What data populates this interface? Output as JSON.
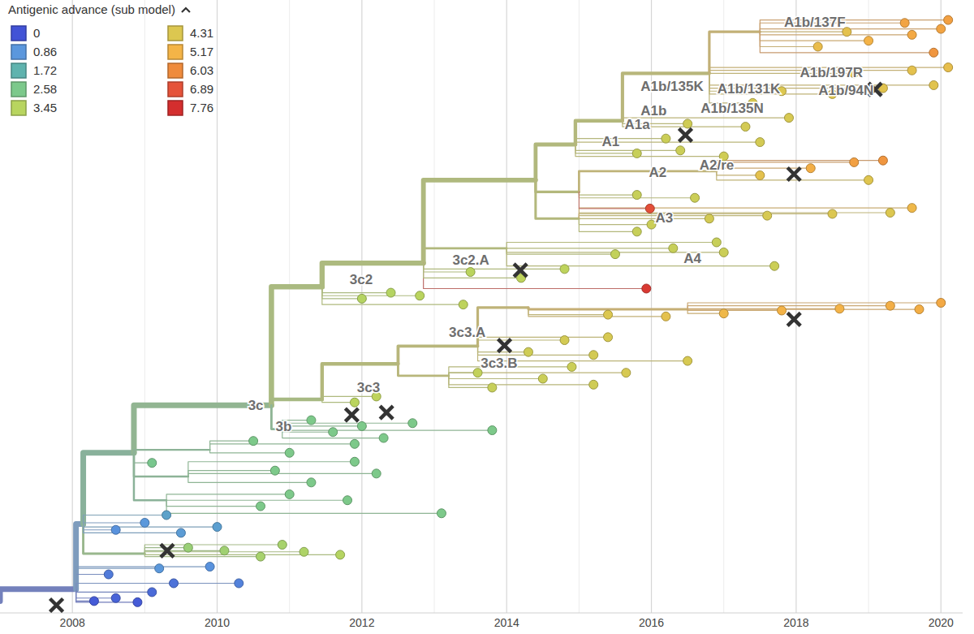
{
  "chart_data": {
    "type": "tree",
    "xlim": [
      2007.0,
      2020.3
    ],
    "ylim": [
      -1,
      101
    ],
    "xticks": [
      2008,
      2010,
      2012,
      2014,
      2016,
      2018,
      2020
    ],
    "grid": true,
    "legend": "top-left",
    "tick_labels": "x",
    "color_scale": {
      "title": "Antigenic advance (sub model)",
      "values": [
        0,
        0.86,
        1.72,
        2.58,
        3.45,
        4.31,
        5.17,
        6.03,
        6.89,
        7.76
      ],
      "colors": [
        "#4253d6",
        "#5b97dd",
        "#5fb3ae",
        "#7cc98b",
        "#b8d55f",
        "#dcc750",
        "#f4b447",
        "#ef8b3c",
        "#e5533a",
        "#d42e2e"
      ]
    },
    "nodes": [
      {
        "x": 2007.0,
        "y": 1.0,
        "parent": null,
        "value": 0
      },
      {
        "x": 2008.05,
        "y": 3.0,
        "parent": 0,
        "value": 0.2
      },
      {
        "x": 2008.15,
        "y": 14.0,
        "parent": 1,
        "value": 0.9
      },
      {
        "x": 2008.85,
        "y": 26.0,
        "parent": 2,
        "value": 2.3
      },
      {
        "x": 2010.75,
        "y": 34.0,
        "parent": 3,
        "value": 2.7
      },
      {
        "x": 2010.9,
        "y": 30.0,
        "parent": 4,
        "value": 2.6
      },
      {
        "x": 2011.45,
        "y": 35.0,
        "parent": 4,
        "value": 3.3
      },
      {
        "x": 2011.45,
        "y": 54.0,
        "parent": 4,
        "value": 3.4
      },
      {
        "x": 2012.85,
        "y": 58.0,
        "parent": 7,
        "value": 3.5
      },
      {
        "x": 2014.4,
        "y": 72.0,
        "parent": 8,
        "value": 3.6
      },
      {
        "x": 2014.95,
        "y": 78.0,
        "parent": 9,
        "value": 3.7
      },
      {
        "x": 2015.6,
        "y": 82.0,
        "parent": 10,
        "value": 3.8
      },
      {
        "x": 2016.8,
        "y": 90.0,
        "parent": 11,
        "value": 4.0
      },
      {
        "x": 2017.5,
        "y": 97.0,
        "parent": 12,
        "value": 4.6
      },
      {
        "x": 2008.3,
        "y": 1.0,
        "parent": 1,
        "value": 0.1
      },
      {
        "x": 2008.6,
        "y": 1.5,
        "parent": 1,
        "value": 0.2
      },
      {
        "x": 2008.9,
        "y": 0.8,
        "parent": 1,
        "value": 0.1
      },
      {
        "x": 2009.1,
        "y": 2.5,
        "parent": 1,
        "value": 0.3
      },
      {
        "x": 2009.4,
        "y": 4.0,
        "parent": 1,
        "value": 0.4
      },
      {
        "x": 2008.5,
        "y": 5.5,
        "parent": 1,
        "value": 0.5
      },
      {
        "x": 2009.9,
        "y": 6.8,
        "parent": 1,
        "value": 0.8
      },
      {
        "x": 2009.2,
        "y": 6.5,
        "parent": 1,
        "value": 0.9
      },
      {
        "x": 2009.0,
        "y": 9.0,
        "parent": 2,
        "value": 2.9
      },
      {
        "x": 2009.6,
        "y": 10.0,
        "parent": 22,
        "value": 3.0
      },
      {
        "x": 2010.1,
        "y": 9.5,
        "parent": 22,
        "value": 3.1
      },
      {
        "x": 2010.6,
        "y": 8.5,
        "parent": 22,
        "value": 3.2
      },
      {
        "x": 2011.2,
        "y": 9.3,
        "parent": 22,
        "value": 3.3
      },
      {
        "x": 2011.7,
        "y": 8.8,
        "parent": 22,
        "value": 3.4
      },
      {
        "x": 2010.9,
        "y": 10.5,
        "parent": 22,
        "value": 3.2
      },
      {
        "x": 2008.6,
        "y": 13.0,
        "parent": 2,
        "value": 0.8
      },
      {
        "x": 2009.0,
        "y": 14.2,
        "parent": 2,
        "value": 0.9
      },
      {
        "x": 2009.5,
        "y": 12.5,
        "parent": 2,
        "value": 1.0
      },
      {
        "x": 2010.0,
        "y": 13.5,
        "parent": 2,
        "value": 1.1
      },
      {
        "x": 2009.3,
        "y": 15.5,
        "parent": 2,
        "value": 1.2
      },
      {
        "x": 2010.3,
        "y": 4.0,
        "parent": 1,
        "value": 0.6
      },
      {
        "x": 2009.3,
        "y": 18.0,
        "parent": 3,
        "value": 2.4
      },
      {
        "x": 2010.6,
        "y": 17.0,
        "parent": 35,
        "value": 2.6
      },
      {
        "x": 2011.8,
        "y": 18.0,
        "parent": 35,
        "value": 2.6
      },
      {
        "x": 2013.1,
        "y": 15.8,
        "parent": 35,
        "value": 2.6
      },
      {
        "x": 2011.0,
        "y": 19.0,
        "parent": 35,
        "value": 2.6
      },
      {
        "x": 2009.6,
        "y": 22.0,
        "parent": 3,
        "value": 2.5
      },
      {
        "x": 2011.3,
        "y": 21.0,
        "parent": 40,
        "value": 2.6
      },
      {
        "x": 2012.2,
        "y": 22.5,
        "parent": 40,
        "value": 2.6
      },
      {
        "x": 2010.8,
        "y": 23.0,
        "parent": 40,
        "value": 2.6
      },
      {
        "x": 2011.9,
        "y": 24.5,
        "parent": 40,
        "value": 2.6
      },
      {
        "x": 2009.9,
        "y": 26.5,
        "parent": 3,
        "value": 2.5
      },
      {
        "x": 2011.0,
        "y": 26.0,
        "parent": 45,
        "value": 2.6
      },
      {
        "x": 2011.9,
        "y": 27.5,
        "parent": 45,
        "value": 2.6
      },
      {
        "x": 2010.5,
        "y": 28.0,
        "parent": 45,
        "value": 2.6
      },
      {
        "x": 2009.1,
        "y": 24.3,
        "parent": 3,
        "value": 2.5
      },
      {
        "x": 2011.3,
        "y": 31.5,
        "parent": 5,
        "value": 2.6
      },
      {
        "x": 2012.0,
        "y": 30.5,
        "parent": 5,
        "value": 2.6
      },
      {
        "x": 2012.7,
        "y": 31.0,
        "parent": 5,
        "value": 2.6
      },
      {
        "x": 2013.8,
        "y": 29.8,
        "parent": 5,
        "value": 2.6
      },
      {
        "x": 2012.3,
        "y": 28.5,
        "parent": 5,
        "value": 2.6
      },
      {
        "x": 2011.6,
        "y": 29.5,
        "parent": 5,
        "value": 2.6
      },
      {
        "x": 2011.9,
        "y": 34.5,
        "parent": 6,
        "value": 3.5
      },
      {
        "x": 2012.2,
        "y": 35.5,
        "parent": 6,
        "value": 3.6
      },
      {
        "x": 2012.5,
        "y": 41.0,
        "parent": 6,
        "value": 3.8
      },
      {
        "x": 2013.2,
        "y": 39.0,
        "parent": 58,
        "value": 4.0
      },
      {
        "x": 2013.8,
        "y": 37.0,
        "parent": 59,
        "value": 3.8
      },
      {
        "x": 2014.5,
        "y": 38.5,
        "parent": 59,
        "value": 3.9
      },
      {
        "x": 2015.2,
        "y": 37.5,
        "parent": 59,
        "value": 4.0
      },
      {
        "x": 2015.65,
        "y": 39.5,
        "parent": 59,
        "value": 4.2
      },
      {
        "x": 2014.9,
        "y": 40.5,
        "parent": 59,
        "value": 3.9
      },
      {
        "x": 2013.6,
        "y": 39.5,
        "parent": 59,
        "value": 3.7
      },
      {
        "x": 2013.6,
        "y": 44.0,
        "parent": 58,
        "value": 4.0
      },
      {
        "x": 2014.3,
        "y": 43.0,
        "parent": 66,
        "value": 4.0
      },
      {
        "x": 2015.2,
        "y": 42.5,
        "parent": 66,
        "value": 4.1
      },
      {
        "x": 2016.5,
        "y": 41.5,
        "parent": 66,
        "value": 4.2
      },
      {
        "x": 2014.8,
        "y": 45.0,
        "parent": 66,
        "value": 4.1
      },
      {
        "x": 2015.4,
        "y": 45.5,
        "parent": 66,
        "value": 4.2
      },
      {
        "x": 2014.3,
        "y": 50.5,
        "parent": 66,
        "value": 4.4
      },
      {
        "x": 2016.5,
        "y": 50.2,
        "parent": 72,
        "value": 4.8
      },
      {
        "x": 2015.4,
        "y": 49.3,
        "parent": 72,
        "value": 4.3
      },
      {
        "x": 2016.2,
        "y": 49.0,
        "parent": 72,
        "value": 4.6
      },
      {
        "x": 2017.0,
        "y": 49.5,
        "parent": 73,
        "value": 5.0
      },
      {
        "x": 2017.8,
        "y": 50.0,
        "parent": 73,
        "value": 5.2
      },
      {
        "x": 2018.6,
        "y": 50.3,
        "parent": 73,
        "value": 5.2
      },
      {
        "x": 2019.3,
        "y": 50.8,
        "parent": 73,
        "value": 5.3
      },
      {
        "x": 2020.0,
        "y": 51.3,
        "parent": 73,
        "value": 5.4
      },
      {
        "x": 2019.7,
        "y": 50.2,
        "parent": 73,
        "value": 5.3
      },
      {
        "x": 2012.0,
        "y": 52.0,
        "parent": 7,
        "value": 3.4
      },
      {
        "x": 2012.4,
        "y": 53.0,
        "parent": 7,
        "value": 3.4
      },
      {
        "x": 2012.8,
        "y": 52.5,
        "parent": 7,
        "value": 3.5
      },
      {
        "x": 2013.4,
        "y": 51.0,
        "parent": 7,
        "value": 3.6
      },
      {
        "x": 2015.93,
        "y": 53.7,
        "parent": 8,
        "value": 7.5
      },
      {
        "x": 2013.5,
        "y": 56.5,
        "parent": 8,
        "value": 3.5
      },
      {
        "x": 2014.2,
        "y": 55.5,
        "parent": 8,
        "value": 3.6
      },
      {
        "x": 2014.8,
        "y": 57.0,
        "parent": 8,
        "value": 3.6
      },
      {
        "x": 2014.0,
        "y": 60.5,
        "parent": 8,
        "value": 3.7
      },
      {
        "x": 2015.5,
        "y": 59.5,
        "parent": 90,
        "value": 3.7
      },
      {
        "x": 2016.3,
        "y": 60.5,
        "parent": 90,
        "value": 3.8
      },
      {
        "x": 2017.0,
        "y": 59.8,
        "parent": 90,
        "value": 3.9
      },
      {
        "x": 2017.7,
        "y": 57.5,
        "parent": 90,
        "value": 3.9
      },
      {
        "x": 2016.9,
        "y": 61.5,
        "parent": 90,
        "value": 3.8
      },
      {
        "x": 2015.0,
        "y": 65.5,
        "parent": 9,
        "value": 3.8
      },
      {
        "x": 2016.0,
        "y": 64.5,
        "parent": 96,
        "value": 3.9
      },
      {
        "x": 2016.8,
        "y": 65.5,
        "parent": 96,
        "value": 4.1
      },
      {
        "x": 2017.6,
        "y": 66.0,
        "parent": 96,
        "value": 4.2
      },
      {
        "x": 2018.5,
        "y": 66.3,
        "parent": 96,
        "value": 4.3
      },
      {
        "x": 2019.3,
        "y": 66.5,
        "parent": 96,
        "value": 4.3
      },
      {
        "x": 2019.6,
        "y": 67.3,
        "parent": 96,
        "value": 5.0
      },
      {
        "x": 2015.8,
        "y": 63.3,
        "parent": 96,
        "value": 3.8
      },
      {
        "x": 2015.0,
        "y": 70.0,
        "parent": 9,
        "value": 3.8
      },
      {
        "x": 2015.8,
        "y": 69.5,
        "parent": 104,
        "value": 3.8
      },
      {
        "x": 2016.6,
        "y": 69.0,
        "parent": 104,
        "value": 3.9
      },
      {
        "x": 2015.98,
        "y": 67.2,
        "parent": 104,
        "value": 7.0
      },
      {
        "x": 2016.9,
        "y": 73.5,
        "parent": 104,
        "value": 4.4
      },
      {
        "x": 2017.5,
        "y": 72.8,
        "parent": 108,
        "value": 4.6
      },
      {
        "x": 2018.2,
        "y": 74.0,
        "parent": 108,
        "value": 5.3
      },
      {
        "x": 2018.8,
        "y": 75.0,
        "parent": 108,
        "value": 5.6
      },
      {
        "x": 2019.2,
        "y": 75.3,
        "parent": 108,
        "value": 5.8
      },
      {
        "x": 2019.0,
        "y": 72.0,
        "parent": 108,
        "value": 4.4
      },
      {
        "x": 2015.8,
        "y": 76.5,
        "parent": 10,
        "value": 3.8
      },
      {
        "x": 2016.4,
        "y": 77.0,
        "parent": 10,
        "value": 3.9
      },
      {
        "x": 2017.0,
        "y": 76.0,
        "parent": 10,
        "value": 4.0
      },
      {
        "x": 2017.5,
        "y": 78.4,
        "parent": 10,
        "value": 4.1
      },
      {
        "x": 2016.2,
        "y": 79.0,
        "parent": 10,
        "value": 3.9
      },
      {
        "x": 2016.5,
        "y": 81.5,
        "parent": 11,
        "value": 4.0
      },
      {
        "x": 2017.3,
        "y": 81.0,
        "parent": 11,
        "value": 4.1
      },
      {
        "x": 2017.9,
        "y": 82.5,
        "parent": 11,
        "value": 4.2
      },
      {
        "x": 2017.8,
        "y": 87.0,
        "parent": 12,
        "value": 4.3
      },
      {
        "x": 2018.5,
        "y": 86.5,
        "parent": 12,
        "value": 4.4
      },
      {
        "x": 2019.2,
        "y": 87.5,
        "parent": 12,
        "value": 4.5
      },
      {
        "x": 2019.9,
        "y": 88.0,
        "parent": 12,
        "value": 4.5
      },
      {
        "x": 2018.8,
        "y": 90.0,
        "parent": 12,
        "value": 4.4
      },
      {
        "x": 2019.6,
        "y": 90.5,
        "parent": 12,
        "value": 4.6
      },
      {
        "x": 2020.1,
        "y": 91.0,
        "parent": 12,
        "value": 4.7
      },
      {
        "x": 2017.4,
        "y": 85.0,
        "parent": 12,
        "value": 4.2
      },
      {
        "x": 2018.3,
        "y": 94.5,
        "parent": 13,
        "value": 4.8
      },
      {
        "x": 2019.0,
        "y": 95.5,
        "parent": 13,
        "value": 5.2
      },
      {
        "x": 2019.6,
        "y": 96.5,
        "parent": 13,
        "value": 5.4
      },
      {
        "x": 2020.0,
        "y": 97.5,
        "parent": 13,
        "value": 5.5
      },
      {
        "x": 2019.5,
        "y": 98.5,
        "parent": 13,
        "value": 5.5
      },
      {
        "x": 2020.1,
        "y": 99.0,
        "parent": 13,
        "value": 5.6
      },
      {
        "x": 2019.9,
        "y": 93.5,
        "parent": 13,
        "value": 5.8
      },
      {
        "x": 2018.7,
        "y": 97.0,
        "parent": 13,
        "value": 4.6
      }
    ],
    "clade_labels": [
      {
        "text": "A1b/137F",
        "x": 2018.68,
        "y": 98.4
      },
      {
        "text": "A1b/197R",
        "x": 2018.92,
        "y": 90.0
      },
      {
        "text": "A1b/94N",
        "x": 2019.07,
        "y": 87.0
      },
      {
        "text": "A1b/135K",
        "x": 2016.72,
        "y": 87.7
      },
      {
        "text": "A1b/131K",
        "x": 2017.78,
        "y": 87.2
      },
      {
        "text": "A1b/135N",
        "x": 2017.55,
        "y": 84.0
      },
      {
        "text": "A1b",
        "x": 2016.21,
        "y": 83.6
      },
      {
        "text": "A1a",
        "x": 2015.98,
        "y": 81.2
      },
      {
        "text": "A1",
        "x": 2015.56,
        "y": 78.4
      },
      {
        "text": "A2/re",
        "x": 2017.14,
        "y": 74.3
      },
      {
        "text": "A2",
        "x": 2016.21,
        "y": 73.2
      },
      {
        "text": "A3",
        "x": 2016.3,
        "y": 65.5
      },
      {
        "text": "A4",
        "x": 2016.69,
        "y": 58.6
      },
      {
        "text": "3c2.A",
        "x": 2013.76,
        "y": 58.4
      },
      {
        "text": "3c2",
        "x": 2012.15,
        "y": 55.1
      },
      {
        "text": "3c3.A",
        "x": 2013.71,
        "y": 46.2
      },
      {
        "text": "3c3.B",
        "x": 2014.15,
        "y": 40.9
      },
      {
        "text": "3c3",
        "x": 2012.25,
        "y": 36.8
      },
      {
        "text": "3c",
        "x": 2010.64,
        "y": 33.8
      },
      {
        "text": "3b",
        "x": 2011.03,
        "y": 30.3
      }
    ],
    "vaccines": {
      "marker": "x",
      "x": [
        2007.78,
        2009.31,
        2011.86,
        2012.34,
        2013.97,
        2014.19,
        2016.47,
        2017.97,
        2017.97,
        2019.09
      ],
      "y": [
        0.3,
        9.5,
        32.4,
        32.8,
        44.1,
        56.8,
        79.6,
        73.0,
        48.5,
        87.3
      ]
    }
  }
}
